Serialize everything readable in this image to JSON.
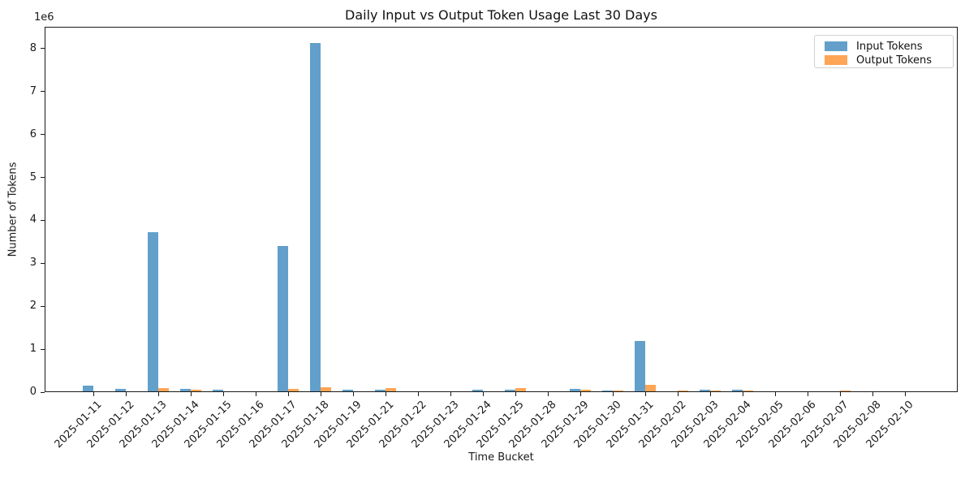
{
  "chart_data": {
    "type": "bar",
    "title": "Daily Input vs Output Token Usage Last 30 Days",
    "xlabel": "Time Bucket",
    "ylabel": "Number of Tokens",
    "y_offset_label": "1e6",
    "ylim": [
      0,
      8510000
    ],
    "yticks": [
      0,
      1,
      2,
      3,
      4,
      5,
      6,
      7,
      8
    ],
    "ytick_scale": 1000000,
    "grid": false,
    "legend_position": "upper-right",
    "categories": [
      "2025-01-11",
      "2025-01-12",
      "2025-01-13",
      "2025-01-14",
      "2025-01-15",
      "2025-01-16",
      "2025-01-17",
      "2025-01-18",
      "2025-01-19",
      "2025-01-21",
      "2025-01-22",
      "2025-01-23",
      "2025-01-24",
      "2025-01-25",
      "2025-01-28",
      "2025-01-29",
      "2025-01-30",
      "2025-01-31",
      "2025-02-02",
      "2025-02-03",
      "2025-02-04",
      "2025-02-05",
      "2025-02-06",
      "2025-02-07",
      "2025-02-08",
      "2025-02-10"
    ],
    "series": [
      {
        "name": "Input Tokens",
        "color": "#62A0CB",
        "values": [
          130000,
          50000,
          3710000,
          55000,
          40000,
          0,
          3380000,
          8110000,
          40000,
          30000,
          0,
          0,
          45000,
          30000,
          0,
          65000,
          25000,
          1170000,
          0,
          30000,
          30000,
          0,
          0,
          0,
          0,
          0
        ]
      },
      {
        "name": "Output Tokens",
        "color": "#FFA556",
        "values": [
          0,
          0,
          85000,
          40000,
          0,
          0,
          50000,
          90000,
          0,
          80000,
          0,
          0,
          0,
          85000,
          0,
          45000,
          25000,
          150000,
          25000,
          25000,
          20000,
          0,
          0,
          15000,
          0,
          0
        ]
      }
    ]
  }
}
